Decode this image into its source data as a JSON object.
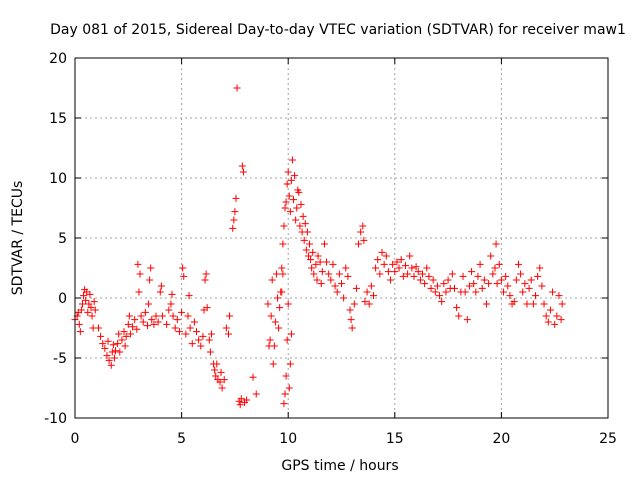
{
  "chart_data": {
    "type": "scatter",
    "title": "Day 081 of 2015, Sidereal Day-to-day VTEC variation (SDTVAR) for receiver maw1",
    "xlabel": "GPS time / hours",
    "ylabel": "SDTVAR / TECUs",
    "xlim": [
      0,
      25
    ],
    "ylim": [
      -10,
      20
    ],
    "xticks": [
      0,
      5,
      10,
      15,
      20,
      25
    ],
    "yticks": [
      -10,
      -5,
      0,
      5,
      10,
      15,
      20
    ],
    "xtick_labels": [
      "0",
      "5",
      "10",
      "15",
      "20",
      "25"
    ],
    "ytick_labels": [
      "-10",
      "-5",
      "0",
      "5",
      "10",
      "15",
      "20"
    ],
    "grid": true,
    "marker": "plus",
    "color": "#ff0000",
    "series": [
      {
        "name": "maw1",
        "points": [
          [
            0.0,
            -1.8
          ],
          [
            0.1,
            -1.5
          ],
          [
            0.15,
            -1.2
          ],
          [
            0.2,
            -2.2
          ],
          [
            0.25,
            -2.8
          ],
          [
            0.3,
            -1.0
          ],
          [
            0.35,
            -0.5
          ],
          [
            0.4,
            0.2
          ],
          [
            0.45,
            0.7
          ],
          [
            0.5,
            -0.2
          ],
          [
            0.55,
            0.5
          ],
          [
            0.6,
            -1.2
          ],
          [
            0.65,
            -0.5
          ],
          [
            0.7,
            0.3
          ],
          [
            0.75,
            -0.8
          ],
          [
            0.8,
            -1.5
          ],
          [
            0.85,
            -2.5
          ],
          [
            0.9,
            -0.3
          ],
          [
            0.95,
            -1.0
          ],
          [
            1.1,
            -2.5
          ],
          [
            1.2,
            -3.2
          ],
          [
            1.3,
            -3.8
          ],
          [
            1.4,
            -4.2
          ],
          [
            1.5,
            -4.8
          ],
          [
            1.55,
            -3.6
          ],
          [
            1.6,
            -5.2
          ],
          [
            1.7,
            -5.6
          ],
          [
            1.75,
            -4.5
          ],
          [
            1.8,
            -3.9
          ],
          [
            1.85,
            -5.0
          ],
          [
            1.9,
            -4.4
          ],
          [
            2.0,
            -3.8
          ],
          [
            2.05,
            -3.0
          ],
          [
            2.1,
            -4.5
          ],
          [
            2.2,
            -3.5
          ],
          [
            2.3,
            -2.8
          ],
          [
            2.35,
            -4.0
          ],
          [
            2.4,
            -3.2
          ],
          [
            2.5,
            -2.2
          ],
          [
            2.55,
            -1.5
          ],
          [
            2.6,
            -3.0
          ],
          [
            2.7,
            -2.4
          ],
          [
            2.8,
            -1.8
          ],
          [
            2.9,
            -2.6
          ],
          [
            2.95,
            2.8
          ],
          [
            3.0,
            0.5
          ],
          [
            3.05,
            2.0
          ],
          [
            3.1,
            -1.5
          ],
          [
            3.2,
            -2.0
          ],
          [
            3.3,
            -1.2
          ],
          [
            3.4,
            -2.3
          ],
          [
            3.45,
            -0.5
          ],
          [
            3.5,
            1.5
          ],
          [
            3.55,
            2.5
          ],
          [
            3.6,
            -1.8
          ],
          [
            3.7,
            -2.2
          ],
          [
            3.8,
            -1.5
          ],
          [
            3.9,
            -2.0
          ],
          [
            4.0,
            0.5
          ],
          [
            4.05,
            1.0
          ],
          [
            4.1,
            -1.5
          ],
          [
            4.3,
            -2.2
          ],
          [
            4.4,
            -1.0
          ],
          [
            4.5,
            -0.5
          ],
          [
            4.55,
            0.3
          ],
          [
            4.6,
            -1.5
          ],
          [
            4.7,
            -2.5
          ],
          [
            4.8,
            -1.8
          ],
          [
            4.9,
            -2.8
          ],
          [
            5.0,
            -1.2
          ],
          [
            5.05,
            2.5
          ],
          [
            5.1,
            1.8
          ],
          [
            5.2,
            -3.0
          ],
          [
            5.3,
            -1.5
          ],
          [
            5.35,
            0.2
          ],
          [
            5.4,
            -2.5
          ],
          [
            5.5,
            -3.8
          ],
          [
            5.6,
            -2.0
          ],
          [
            5.7,
            -2.8
          ],
          [
            5.8,
            -3.5
          ],
          [
            5.9,
            -4.0
          ],
          [
            6.0,
            -3.2
          ],
          [
            6.05,
            -1.0
          ],
          [
            6.1,
            1.5
          ],
          [
            6.15,
            2.0
          ],
          [
            6.2,
            -0.8
          ],
          [
            6.3,
            -3.5
          ],
          [
            6.35,
            -4.5
          ],
          [
            6.4,
            -3.0
          ],
          [
            6.5,
            -5.5
          ],
          [
            6.55,
            -6.0
          ],
          [
            6.6,
            -6.5
          ],
          [
            6.65,
            -5.5
          ],
          [
            6.7,
            -6.8
          ],
          [
            6.8,
            -7.0
          ],
          [
            6.85,
            -6.2
          ],
          [
            6.9,
            -7.5
          ],
          [
            7.0,
            -6.8
          ],
          [
            7.1,
            -2.5
          ],
          [
            7.2,
            -3.0
          ],
          [
            7.25,
            -1.5
          ],
          [
            7.4,
            5.8
          ],
          [
            7.45,
            6.5
          ],
          [
            7.5,
            7.2
          ],
          [
            7.55,
            8.3
          ],
          [
            7.6,
            17.5
          ],
          [
            7.7,
            -8.6
          ],
          [
            7.75,
            -8.9
          ],
          [
            7.8,
            -8.4
          ],
          [
            7.85,
            11.0
          ],
          [
            7.9,
            10.5
          ],
          [
            7.95,
            -8.7
          ],
          [
            8.05,
            -8.5
          ],
          [
            8.35,
            -6.6
          ],
          [
            8.5,
            -8.0
          ],
          [
            9.05,
            -0.5
          ],
          [
            9.1,
            -4.0
          ],
          [
            9.15,
            -3.5
          ],
          [
            9.2,
            -1.5
          ],
          [
            9.25,
            1.5
          ],
          [
            9.3,
            -5.5
          ],
          [
            9.35,
            -4.0
          ],
          [
            9.4,
            -2.0
          ],
          [
            9.45,
            2.0
          ],
          [
            9.5,
            0.0
          ],
          [
            9.55,
            -2.5
          ],
          [
            9.6,
            -0.8
          ],
          [
            9.7,
            0.5
          ],
          [
            9.75,
            2.0
          ],
          [
            9.8,
            -8.8
          ],
          [
            9.85,
            -8.0
          ],
          [
            9.9,
            -6.5
          ],
          [
            9.95,
            -3.5
          ],
          [
            10.0,
            -0.5
          ],
          [
            10.05,
            -7.5
          ],
          [
            10.1,
            -5.5
          ],
          [
            10.15,
            -3.0
          ],
          [
            9.65,
            0.5
          ],
          [
            9.7,
            2.5
          ],
          [
            9.75,
            4.5
          ],
          [
            9.8,
            6.0
          ],
          [
            9.85,
            7.5
          ],
          [
            9.9,
            8.0
          ],
          [
            9.95,
            9.5
          ],
          [
            10.0,
            10.5
          ],
          [
            10.05,
            8.5
          ],
          [
            10.1,
            7.2
          ],
          [
            10.15,
            9.8
          ],
          [
            10.2,
            11.5
          ],
          [
            10.25,
            8.2
          ],
          [
            10.3,
            10.2
          ],
          [
            10.35,
            6.5
          ],
          [
            10.4,
            7.5
          ],
          [
            10.45,
            9.0
          ],
          [
            10.5,
            8.8
          ],
          [
            10.55,
            6.0
          ],
          [
            10.6,
            7.8
          ],
          [
            10.65,
            5.5
          ],
          [
            10.7,
            6.8
          ],
          [
            10.75,
            4.8
          ],
          [
            10.8,
            6.2
          ],
          [
            10.85,
            4.0
          ],
          [
            10.9,
            5.5
          ],
          [
            10.95,
            3.5
          ],
          [
            11.0,
            4.5
          ],
          [
            11.05,
            3.2
          ],
          [
            11.1,
            2.5
          ],
          [
            11.15,
            3.8
          ],
          [
            11.2,
            2.0
          ],
          [
            11.3,
            2.8
          ],
          [
            11.35,
            1.5
          ],
          [
            11.4,
            3.5
          ],
          [
            11.5,
            3.0
          ],
          [
            11.55,
            1.2
          ],
          [
            11.6,
            2.2
          ],
          [
            11.7,
            4.5
          ],
          [
            11.8,
            3.0
          ],
          [
            11.9,
            2.0
          ],
          [
            12.0,
            1.5
          ],
          [
            12.1,
            2.8
          ],
          [
            12.2,
            1.0
          ],
          [
            12.3,
            0.5
          ],
          [
            12.4,
            2.0
          ],
          [
            12.5,
            1.2
          ],
          [
            12.6,
            0.0
          ],
          [
            12.7,
            2.5
          ],
          [
            12.8,
            1.8
          ],
          [
            12.9,
            -1.0
          ],
          [
            12.95,
            -1.8
          ],
          [
            13.0,
            -2.5
          ],
          [
            13.1,
            -0.5
          ],
          [
            13.2,
            0.8
          ],
          [
            13.3,
            4.5
          ],
          [
            13.4,
            5.5
          ],
          [
            13.5,
            6.0
          ],
          [
            13.55,
            4.8
          ],
          [
            13.6,
            -0.3
          ],
          [
            13.7,
            0.5
          ],
          [
            13.8,
            -0.5
          ],
          [
            13.9,
            1.0
          ],
          [
            14.0,
            0.2
          ],
          [
            14.1,
            2.5
          ],
          [
            14.2,
            3.2
          ],
          [
            14.3,
            2.0
          ],
          [
            14.4,
            3.8
          ],
          [
            14.5,
            2.8
          ],
          [
            14.6,
            3.5
          ],
          [
            14.7,
            2.2
          ],
          [
            14.8,
            1.5
          ],
          [
            14.9,
            2.8
          ],
          [
            15.0,
            2.2
          ],
          [
            15.1,
            3.0
          ],
          [
            15.2,
            2.5
          ],
          [
            15.3,
            3.2
          ],
          [
            15.4,
            1.8
          ],
          [
            15.5,
            2.7
          ],
          [
            15.6,
            2.0
          ],
          [
            15.7,
            3.5
          ],
          [
            15.8,
            2.5
          ],
          [
            15.9,
            1.8
          ],
          [
            16.0,
            2.6
          ],
          [
            16.1,
            2.2
          ],
          [
            16.2,
            1.5
          ],
          [
            16.3,
            2.0
          ],
          [
            16.4,
            1.2
          ],
          [
            16.5,
            2.5
          ],
          [
            16.6,
            1.8
          ],
          [
            16.7,
            0.8
          ],
          [
            16.8,
            1.5
          ],
          [
            16.9,
            0.5
          ],
          [
            17.0,
            1.0
          ],
          [
            17.1,
            0.2
          ],
          [
            17.2,
            -0.3
          ],
          [
            17.3,
            1.2
          ],
          [
            17.4,
            0.5
          ],
          [
            17.5,
            1.5
          ],
          [
            17.6,
            0.8
          ],
          [
            17.7,
            2.0
          ],
          [
            17.8,
            0.8
          ],
          [
            17.9,
            -0.8
          ],
          [
            18.0,
            -1.5
          ],
          [
            18.1,
            0.5
          ],
          [
            18.2,
            1.8
          ],
          [
            18.3,
            0.5
          ],
          [
            18.4,
            -1.8
          ],
          [
            18.5,
            1.0
          ],
          [
            18.6,
            2.2
          ],
          [
            18.7,
            1.2
          ],
          [
            18.8,
            0.5
          ],
          [
            18.9,
            1.8
          ],
          [
            19.0,
            2.8
          ],
          [
            19.1,
            0.8
          ],
          [
            19.2,
            1.5
          ],
          [
            19.3,
            -0.5
          ],
          [
            19.4,
            1.2
          ],
          [
            19.5,
            3.5
          ],
          [
            19.6,
            2.0
          ],
          [
            19.7,
            2.5
          ],
          [
            19.75,
            4.5
          ],
          [
            19.8,
            1.2
          ],
          [
            19.9,
            2.8
          ],
          [
            20.0,
            1.5
          ],
          [
            20.1,
            0.5
          ],
          [
            20.2,
            1.8
          ],
          [
            20.3,
            1.0
          ],
          [
            20.4,
            0.2
          ],
          [
            20.5,
            -0.5
          ],
          [
            20.6,
            -0.3
          ],
          [
            20.7,
            1.5
          ],
          [
            20.8,
            2.8
          ],
          [
            20.9,
            2.0
          ],
          [
            21.0,
            0.5
          ],
          [
            21.1,
            1.2
          ],
          [
            21.2,
            -0.5
          ],
          [
            21.3,
            0.8
          ],
          [
            21.4,
            1.5
          ],
          [
            21.5,
            -0.5
          ],
          [
            21.6,
            0.2
          ],
          [
            21.7,
            1.8
          ],
          [
            21.8,
            2.5
          ],
          [
            21.9,
            1.0
          ],
          [
            22.0,
            -0.5
          ],
          [
            22.1,
            -1.5
          ],
          [
            22.2,
            -2.0
          ],
          [
            22.3,
            -1.0
          ],
          [
            22.4,
            0.5
          ],
          [
            22.5,
            -2.2
          ],
          [
            22.6,
            -1.5
          ],
          [
            22.7,
            0.2
          ],
          [
            22.8,
            -1.8
          ],
          [
            22.85,
            -0.5
          ]
        ]
      }
    ]
  }
}
